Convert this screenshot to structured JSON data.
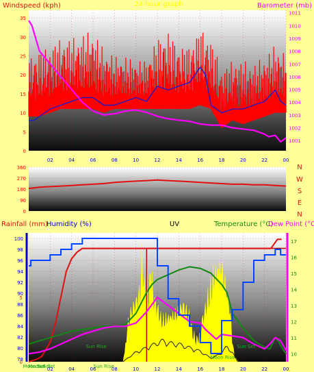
{
  "colors": {
    "background": "#ffff99",
    "wind": "#ff0000",
    "wind_avg": "#1a1acc",
    "barometer": "#ff00ff",
    "wind_dir": "#e01010",
    "rain": "#e01010",
    "humidity": "#0044ff",
    "uv": "#ffff00",
    "temperature": "#118811",
    "dewpoint": "#ff00ff",
    "solar": "#222222",
    "rain_max": "#c00000",
    "left_axis": "#0000cc",
    "right_axis": "#ff00ff",
    "compass": "#e01010"
  },
  "chart_data": [
    {
      "type": "line",
      "title": "24 hour graph",
      "title_color": "#ffff00",
      "left_label": "Windspeed (kph)",
      "right_label": "Barometer (mb)",
      "x_ticks": [
        "02",
        "04",
        "06",
        "08",
        "10",
        "12",
        "14",
        "16",
        "18",
        "20",
        "22",
        "00"
      ],
      "y_left_ticks": [
        0,
        5,
        10,
        15,
        20,
        25,
        30,
        35
      ],
      "y_left_range": [
        0,
        37
      ],
      "y_right_ticks": [
        1001,
        1002,
        1003,
        1004,
        1005,
        1006,
        1007,
        1008,
        1009,
        1010,
        1011
      ],
      "y_right_range": [
        1000.2,
        1011.2
      ],
      "x_range": [
        0,
        24
      ],
      "series": [
        {
          "kind": "wind-gust-band",
          "x": [
            0,
            1,
            2,
            3,
            4,
            5,
            6,
            7,
            8,
            9,
            10,
            11,
            12,
            13,
            14,
            15,
            16,
            17,
            18,
            19,
            20,
            21,
            22,
            23,
            24
          ],
          "low": [
            9,
            9,
            10,
            11,
            11,
            11,
            11,
            10,
            11,
            11,
            11,
            11,
            11,
            11,
            11,
            11,
            12,
            11,
            6,
            8,
            7,
            8,
            9,
            10,
            10
          ],
          "high": [
            25,
            27,
            28,
            30,
            30,
            31,
            32,
            27,
            25,
            25,
            24,
            24,
            30,
            32,
            28,
            28,
            33,
            30,
            22,
            24,
            24,
            23,
            25,
            28,
            26
          ]
        },
        {
          "kind": "wind-average",
          "x": [
            0,
            0.5,
            1,
            2,
            3,
            4,
            5,
            6,
            7,
            8,
            9,
            10,
            11,
            12,
            13,
            14,
            15,
            16,
            16.5,
            17,
            18,
            19,
            20,
            21,
            22,
            23,
            23.5,
            24
          ],
          "values": [
            8,
            8,
            9,
            11,
            12,
            13,
            14,
            14,
            12,
            12,
            13,
            14,
            13,
            17,
            16,
            17,
            18,
            22,
            20,
            12,
            10,
            11,
            11,
            12,
            13,
            16,
            13,
            12
          ]
        },
        {
          "kind": "barometer",
          "x": [
            0,
            0.3,
            1,
            2,
            3,
            4,
            5,
            6,
            7,
            8,
            9,
            10,
            11,
            12,
            13,
            14,
            15,
            16,
            17,
            18,
            19,
            20,
            21,
            22,
            22.4,
            23,
            23.5,
            24
          ],
          "values": [
            1010.4,
            1010.0,
            1008.0,
            1007.0,
            1006.0,
            1005.0,
            1004.0,
            1003.3,
            1003.0,
            1003.1,
            1003.3,
            1003.4,
            1003.2,
            1002.9,
            1002.7,
            1002.6,
            1002.5,
            1002.3,
            1002.2,
            1002.2,
            1002.0,
            1001.9,
            1001.8,
            1001.5,
            1001.3,
            1001.4,
            1000.9,
            1001.2
          ]
        }
      ]
    },
    {
      "type": "line",
      "title": "",
      "left_ticks": [
        0,
        90,
        180,
        270,
        360
      ],
      "y_range": [
        0,
        360
      ],
      "x_range": [
        0,
        24
      ],
      "compass_letters": [
        "N",
        "W",
        "S",
        "E",
        "N"
      ],
      "series": [
        {
          "kind": "wind-direction",
          "x": [
            0,
            1,
            2,
            3,
            4,
            5,
            6,
            7,
            8,
            9,
            10,
            11,
            12,
            13,
            14,
            15,
            16,
            17,
            18,
            19,
            20,
            21,
            22,
            23,
            24
          ],
          "values": [
            185,
            195,
            200,
            205,
            210,
            215,
            220,
            225,
            235,
            240,
            245,
            250,
            255,
            250,
            245,
            240,
            235,
            230,
            225,
            220,
            220,
            215,
            215,
            210,
            205
          ]
        }
      ]
    },
    {
      "type": "line",
      "labels": {
        "rainfall": "Rainfall (mm)",
        "humidity": "Humidity (%)",
        "uv": "UV",
        "temperature": "Temperature (°C)",
        "dewpoint": "Dew Point (°C)"
      },
      "x_ticks": [
        "02",
        "04",
        "06",
        "08",
        "10",
        "12",
        "14",
        "16",
        "18",
        "20",
        "22",
        "00"
      ],
      "x_range": [
        0,
        24
      ],
      "rain_ticks": [
        0,
        5
      ],
      "rain_range": [
        0,
        10
      ],
      "humidity_ticks": [
        78,
        80,
        82,
        84,
        86,
        88,
        90,
        92,
        94,
        96,
        98,
        100
      ],
      "humidity_range": [
        77.5,
        101
      ],
      "temp_ticks": [
        10,
        11,
        12,
        13,
        14,
        15,
        16,
        17
      ],
      "temp_range": [
        9.5,
        17.5
      ],
      "events": [
        {
          "label": "Moon Set",
          "hour": 0.5
        },
        {
          "label": "Sun Rise",
          "hour": 6.3
        },
        {
          "label": "Sun Rise",
          "hour": 7.0
        },
        {
          "label": "Sun Set",
          "hour": 20.3
        },
        {
          "label": "Moon Rise",
          "hour": 18.1
        },
        {
          "label": "Moon Set",
          "hour": 1.0
        },
        {
          "label": "Sun Set",
          "hour": 1.6
        }
      ],
      "series": [
        {
          "kind": "rain",
          "x": [
            0,
            0.8,
            1.2,
            2,
            2.5,
            3,
            3.5,
            4,
            4.5,
            5,
            8,
            11,
            12,
            16,
            20,
            22,
            22.3,
            22.6,
            23.2,
            23.6
          ],
          "values": [
            0,
            0.2,
            0.4,
            1.5,
            3.0,
            5.0,
            7.0,
            8.0,
            8.5,
            8.8,
            8.8,
            8.8,
            8.8,
            8.8,
            8.8,
            8.8,
            8.8,
            8.8,
            9.5,
            9.5
          ],
          "max_line": {
            "from_hour": 11,
            "value": 8.8
          }
        },
        {
          "kind": "humidity",
          "x": [
            0,
            0.2,
            1,
            2,
            3,
            4,
            5,
            6,
            7,
            8,
            9,
            10,
            11,
            12,
            13,
            14,
            15,
            16,
            17,
            17.4,
            18,
            19,
            20,
            21,
            22,
            23,
            23.5,
            24
          ],
          "values": [
            95,
            96,
            96,
            97,
            98,
            99,
            100,
            100,
            100,
            100,
            100,
            100,
            100,
            95,
            89,
            86,
            84,
            81,
            79,
            79,
            85,
            87,
            92,
            96,
            97,
            98,
            97,
            97
          ]
        },
        {
          "kind": "temperature",
          "x": [
            0,
            1,
            2,
            3,
            4,
            5,
            6,
            7,
            8,
            9,
            10,
            11,
            11.5,
            12,
            13,
            14,
            15,
            16,
            17,
            18,
            18.5,
            19,
            20,
            21,
            22,
            22.5,
            23,
            23.3,
            23.6,
            24
          ],
          "values": [
            10.6,
            10.8,
            11.0,
            11.2,
            11.4,
            11.5,
            11.6,
            11.7,
            11.7,
            11.8,
            12.5,
            13.8,
            14.3,
            14.6,
            14.9,
            15.2,
            15.4,
            15.3,
            15.0,
            14.3,
            13.8,
            12.5,
            11.6,
            10.8,
            10.4,
            10.3,
            11.0,
            10.8,
            10.4,
            10.0
          ]
        },
        {
          "kind": "dewpoint",
          "x": [
            0,
            1,
            2,
            3,
            4,
            5,
            6,
            7,
            8,
            9,
            10,
            11,
            12,
            13,
            14,
            15,
            16,
            16.5,
            17,
            17.5,
            18,
            19,
            20,
            21,
            22,
            22.5,
            23,
            23.5,
            24
          ],
          "values": [
            10.0,
            10.1,
            10.3,
            10.6,
            10.9,
            11.2,
            11.4,
            11.6,
            11.7,
            11.7,
            11.9,
            12.6,
            13.5,
            13.0,
            12.5,
            12.0,
            11.9,
            11.5,
            11.2,
            10.9,
            11.2,
            11.1,
            11.0,
            10.6,
            10.3,
            10.6,
            11.0,
            10.8,
            10.2
          ]
        },
        {
          "kind": "uv",
          "x": [
            0,
            8.8,
            9.2,
            9.6,
            10.0,
            10.4,
            10.6,
            10.8,
            11.0,
            11.2,
            11.4,
            11.6,
            11.8,
            12.0,
            12.4,
            12.8,
            13.2,
            13.6,
            14.0,
            14.4,
            14.8,
            15.2,
            15.6,
            16.0,
            16.4,
            16.8,
            17.2,
            17.6,
            18.0,
            18.4,
            18.8,
            19.0,
            19.2,
            19.6,
            24
          ],
          "values": [
            0,
            0,
            3.0,
            4.5,
            5.0,
            6.0,
            9.5,
            6.0,
            8.0,
            4.5,
            9.0,
            5.5,
            5.0,
            4.5,
            3.5,
            3.8,
            4.0,
            4.2,
            4.5,
            4.8,
            4.0,
            3.0,
            2.0,
            2.5,
            4.0,
            6.0,
            8.0,
            9.0,
            9.5,
            7.0,
            4.0,
            2.0,
            0.5,
            0,
            0
          ],
          "range": [
            0,
            10
          ]
        },
        {
          "kind": "solar",
          "x": [
            0,
            8.8,
            9.5,
            10,
            11,
            12,
            12.5,
            13,
            14,
            15,
            16,
            16.5,
            17,
            17.5,
            18,
            18.5,
            19,
            19.5,
            24
          ],
          "values": [
            0,
            0,
            0.5,
            0.8,
            1.2,
            1.6,
            1.8,
            1.6,
            1.5,
            1.2,
            0.9,
            0.6,
            0.3,
            0.5,
            0.8,
            1.3,
            0.8,
            0,
            0
          ],
          "range": [
            0,
            10
          ]
        }
      ]
    }
  ]
}
